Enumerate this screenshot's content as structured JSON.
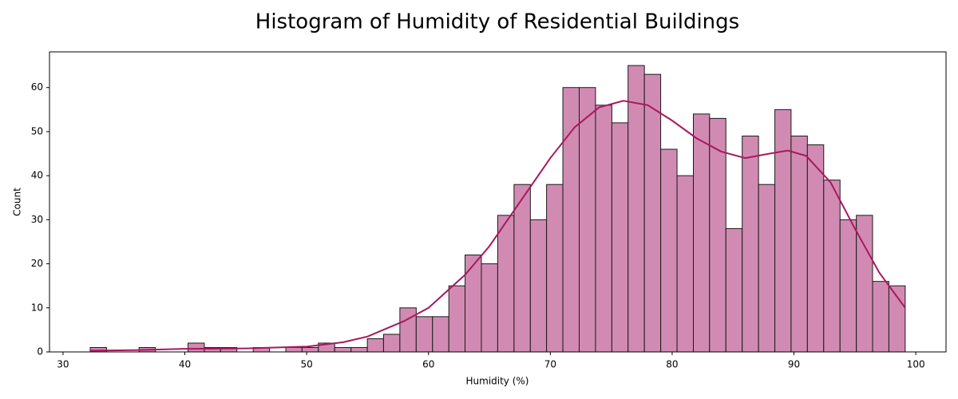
{
  "chart_data": {
    "type": "histogram",
    "title": "Histogram of Humidity of Residential Buildings",
    "xlabel": "Humidity (%)",
    "ylabel": "Count",
    "bins": [
      32.23,
      33.57,
      34.91,
      36.24,
      37.58,
      38.92,
      40.26,
      41.6,
      42.93,
      44.27,
      45.61,
      46.95,
      48.29,
      49.62,
      50.96,
      52.3,
      53.64,
      54.98,
      56.31,
      57.65,
      58.99,
      60.33,
      61.67,
      63.0,
      64.34,
      65.68,
      67.02,
      68.36,
      69.69,
      71.03,
      72.37,
      73.71,
      75.05,
      76.38,
      77.72,
      79.06,
      80.4,
      81.74,
      83.07,
      84.41,
      85.75,
      87.09,
      88.43,
      89.76,
      91.1,
      92.44,
      93.78,
      95.12,
      96.45,
      97.79,
      99.13
    ],
    "counts": [
      1,
      0,
      0,
      1,
      0,
      0,
      2,
      1,
      1,
      0,
      1,
      0,
      1,
      1,
      2,
      1,
      1,
      3,
      4,
      10,
      8,
      8,
      15,
      22,
      20,
      31,
      38,
      30,
      38,
      60,
      60,
      56,
      52,
      65,
      63,
      46,
      40,
      54,
      53,
      28,
      49,
      38,
      55,
      49,
      47,
      39,
      30,
      31,
      16,
      15
    ],
    "color": "#d18bb2",
    "edgecolor": "#1a1a1a",
    "kde": {
      "color": "#a8185e",
      "x": [
        32.23,
        36,
        40,
        45,
        50,
        53,
        55,
        58,
        60,
        63,
        65,
        68,
        70,
        72,
        74,
        76,
        78,
        80,
        82,
        84,
        86,
        88,
        89.5,
        91,
        93,
        95,
        97,
        99.13
      ],
      "values": [
        0.3,
        0.4,
        0.7,
        0.8,
        1.2,
        2.2,
        3.5,
        7,
        10,
        17.5,
        24,
        36,
        44,
        51,
        55.5,
        57,
        56,
        52.5,
        48.5,
        45.5,
        44,
        45,
        45.7,
        44.5,
        38.5,
        28,
        18,
        10
      ]
    },
    "xlim": [
      28.89,
      102.48
    ],
    "ylim": [
      0,
      68.1
    ],
    "xticks": [
      30,
      40,
      50,
      60,
      70,
      80,
      90,
      100
    ],
    "yticks": [
      0,
      10,
      20,
      30,
      40,
      50,
      60
    ]
  }
}
